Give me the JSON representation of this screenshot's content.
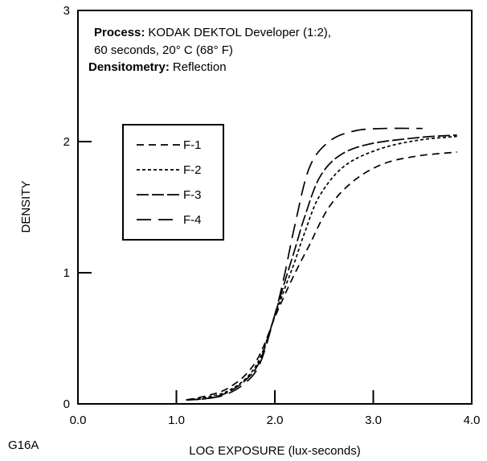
{
  "figure_code": "G16A",
  "colors": {
    "ink": "#000000",
    "background": "#ffffff"
  },
  "chart_data": {
    "type": "line",
    "xlabel": "LOG EXPOSURE (lux-seconds)",
    "ylabel": "DENSITY",
    "xlim": [
      0,
      4
    ],
    "ylim": [
      0,
      3
    ],
    "xticks": [
      {
        "value": 0,
        "label": "0.0"
      },
      {
        "value": 1,
        "label": "1.0"
      },
      {
        "value": 2,
        "label": "2.0"
      },
      {
        "value": 3,
        "label": "3.0"
      },
      {
        "value": 4,
        "label": "4.0"
      }
    ],
    "yticks": [
      {
        "value": 0,
        "label": "0"
      },
      {
        "value": 1,
        "label": "1"
      },
      {
        "value": 2,
        "label": "2"
      },
      {
        "value": 3,
        "label": "3"
      }
    ],
    "grid": false,
    "legend_position": "upper-left",
    "annotations": {
      "process_label": "Process:",
      "process_lines": [
        "KODAK DEKTOL Developer (1:2),",
        "60 seconds, 20° C (68° F)"
      ],
      "densitometry_label": "Densitometry:",
      "densitometry_value": "Reflection"
    },
    "series": [
      {
        "name": "F-1",
        "x": [
          1.1,
          1.3,
          1.5,
          1.7,
          1.85,
          2.0,
          2.1,
          2.2,
          2.35,
          2.55,
          2.8,
          3.1,
          3.45,
          3.85
        ],
        "y": [
          0.03,
          0.06,
          0.11,
          0.22,
          0.38,
          0.66,
          0.83,
          0.99,
          1.21,
          1.5,
          1.7,
          1.83,
          1.89,
          1.92
        ]
      },
      {
        "name": "F-2",
        "x": [
          1.1,
          1.3,
          1.5,
          1.7,
          1.85,
          2.0,
          2.1,
          2.2,
          2.3,
          2.45,
          2.7,
          3.05,
          3.45,
          3.85
        ],
        "y": [
          0.03,
          0.05,
          0.09,
          0.19,
          0.35,
          0.67,
          0.88,
          1.08,
          1.3,
          1.58,
          1.81,
          1.94,
          2.01,
          2.04
        ]
      },
      {
        "name": "F-3",
        "x": [
          1.1,
          1.3,
          1.5,
          1.7,
          1.85,
          2.0,
          2.1,
          2.2,
          2.3,
          2.45,
          2.65,
          2.95,
          3.45,
          3.85
        ],
        "y": [
          0.03,
          0.04,
          0.08,
          0.18,
          0.33,
          0.68,
          0.93,
          1.17,
          1.42,
          1.72,
          1.89,
          1.98,
          2.03,
          2.05
        ]
      },
      {
        "name": "F-4",
        "x": [
          1.1,
          1.3,
          1.5,
          1.7,
          1.85,
          2.0,
          2.1,
          2.2,
          2.35,
          2.55,
          2.8,
          3.1,
          3.5
        ],
        "y": [
          0.03,
          0.04,
          0.07,
          0.16,
          0.31,
          0.68,
          0.99,
          1.35,
          1.8,
          2.0,
          2.08,
          2.1,
          2.1
        ]
      }
    ]
  }
}
